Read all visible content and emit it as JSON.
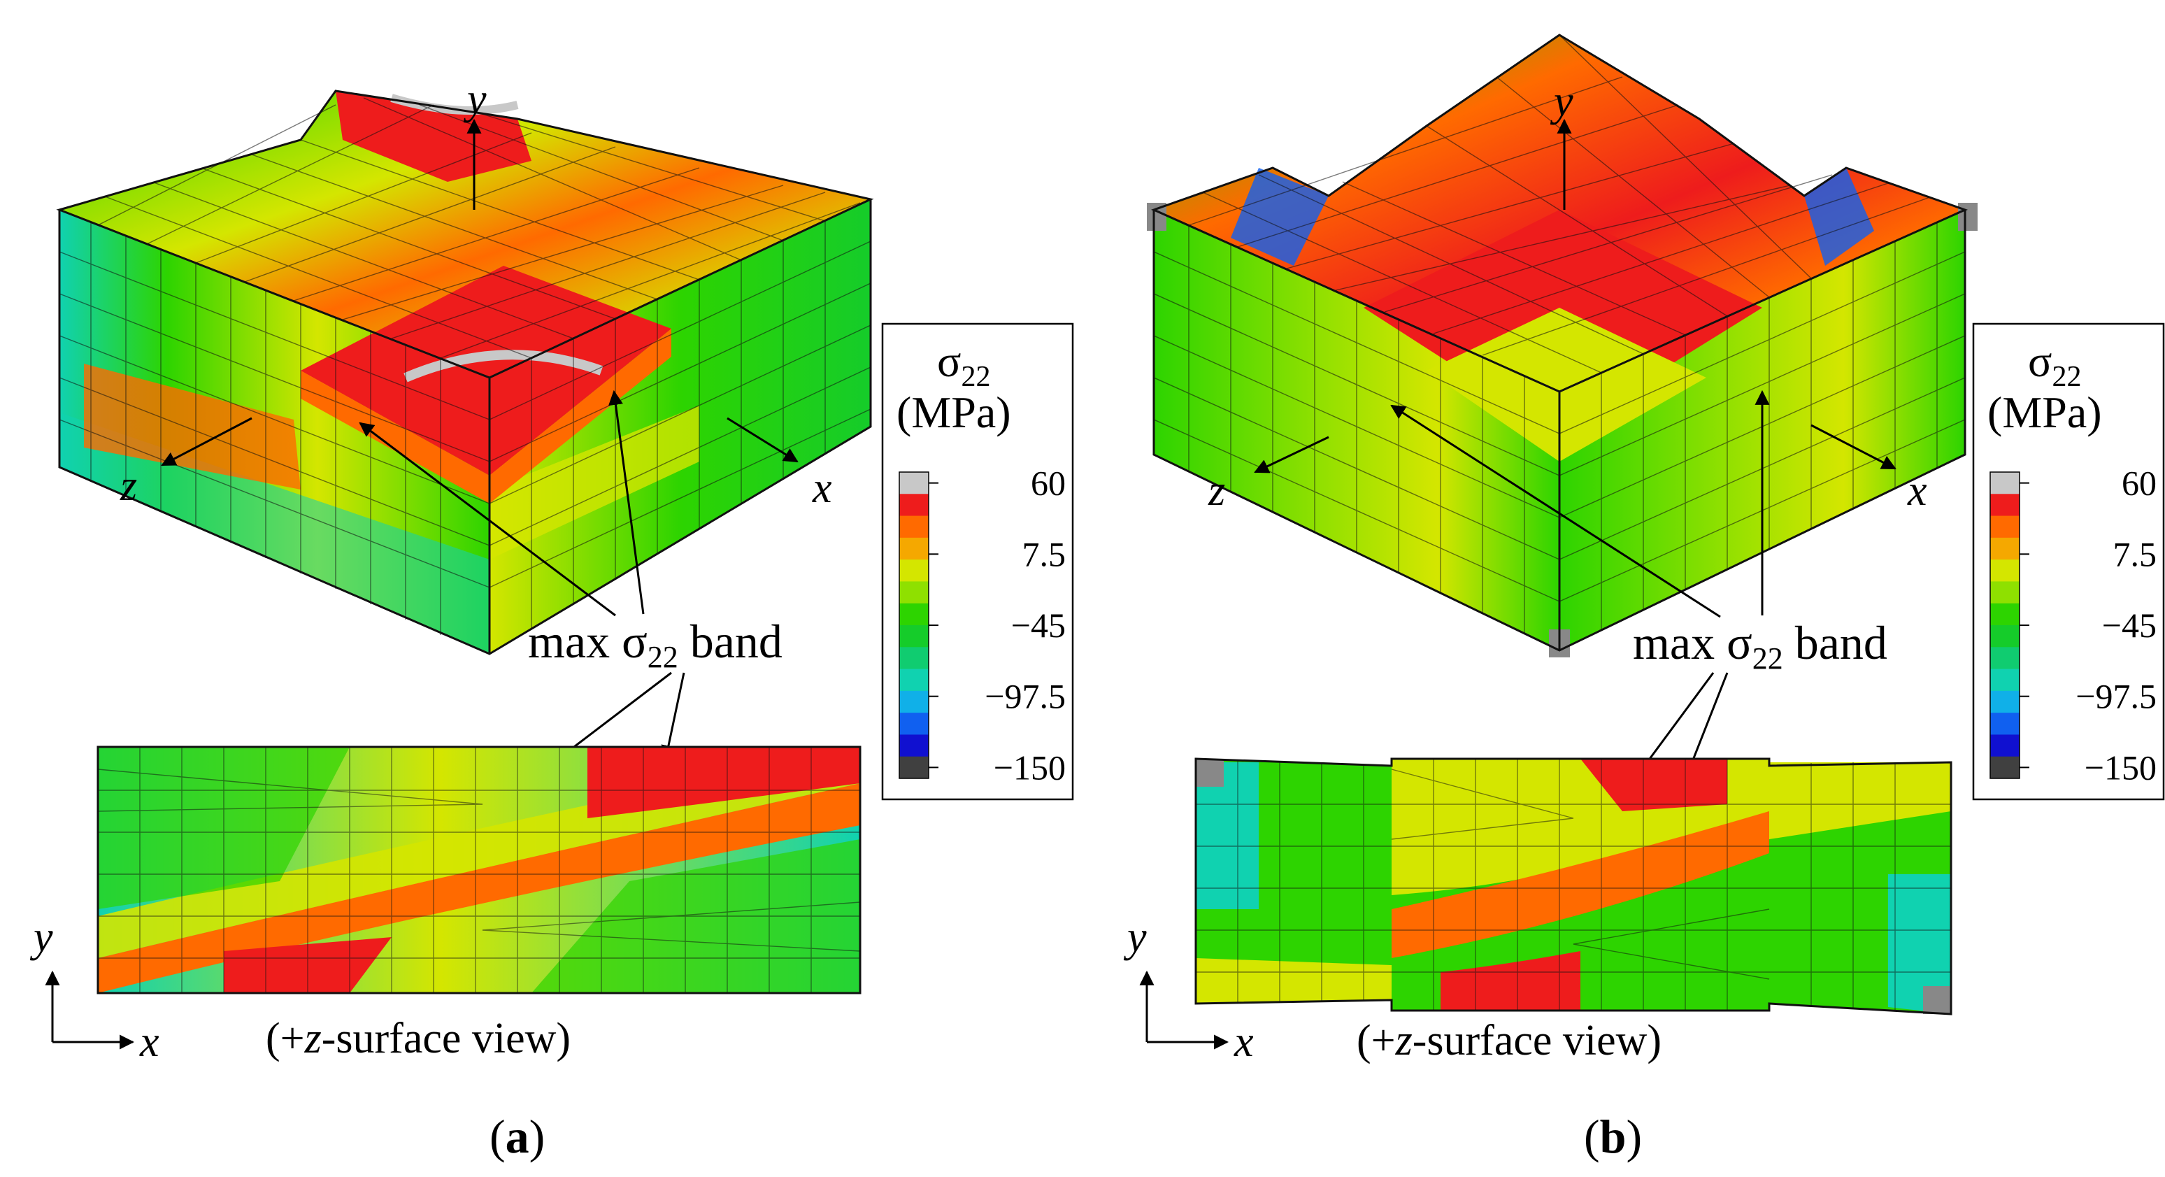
{
  "panels": [
    {
      "id": "a",
      "caption_open": "(",
      "caption_letter": "a",
      "caption_close": ")",
      "annotation_prefix": "max σ",
      "annotation_sub": "22",
      "annotation_suffix": " band",
      "surface_view": {
        "open": "(+",
        "axis": "z",
        "rest": "-surface view)"
      },
      "axes_3d": {
        "y": "y",
        "z": "z",
        "x": "x"
      },
      "axes_2d": {
        "y": "y",
        "x": "x"
      }
    },
    {
      "id": "b",
      "caption_open": "(",
      "caption_letter": "b",
      "caption_close": ")",
      "annotation_prefix": "max σ",
      "annotation_sub": "22",
      "annotation_suffix": " band",
      "surface_view": {
        "open": "(+",
        "axis": "z",
        "rest": "-surface view)"
      },
      "axes_3d": {
        "y": "y",
        "z": "z",
        "x": "x"
      },
      "axes_2d": {
        "y": "y",
        "x": "x"
      }
    }
  ],
  "legend": {
    "symbol": "σ",
    "subscript": "22",
    "unit": "(MPa)",
    "ticks": [
      "60",
      "7.5",
      "−45",
      "−97.5",
      "−150"
    ],
    "colors": [
      "#c8c8c8",
      "#ee1c1c",
      "#ff6a00",
      "#f5a800",
      "#d4e600",
      "#8fe000",
      "#2dd400",
      "#15cc2a",
      "#10cc70",
      "#10d2b0",
      "#10b0e8",
      "#1060f0",
      "#1010d0",
      "#404040"
    ]
  }
}
